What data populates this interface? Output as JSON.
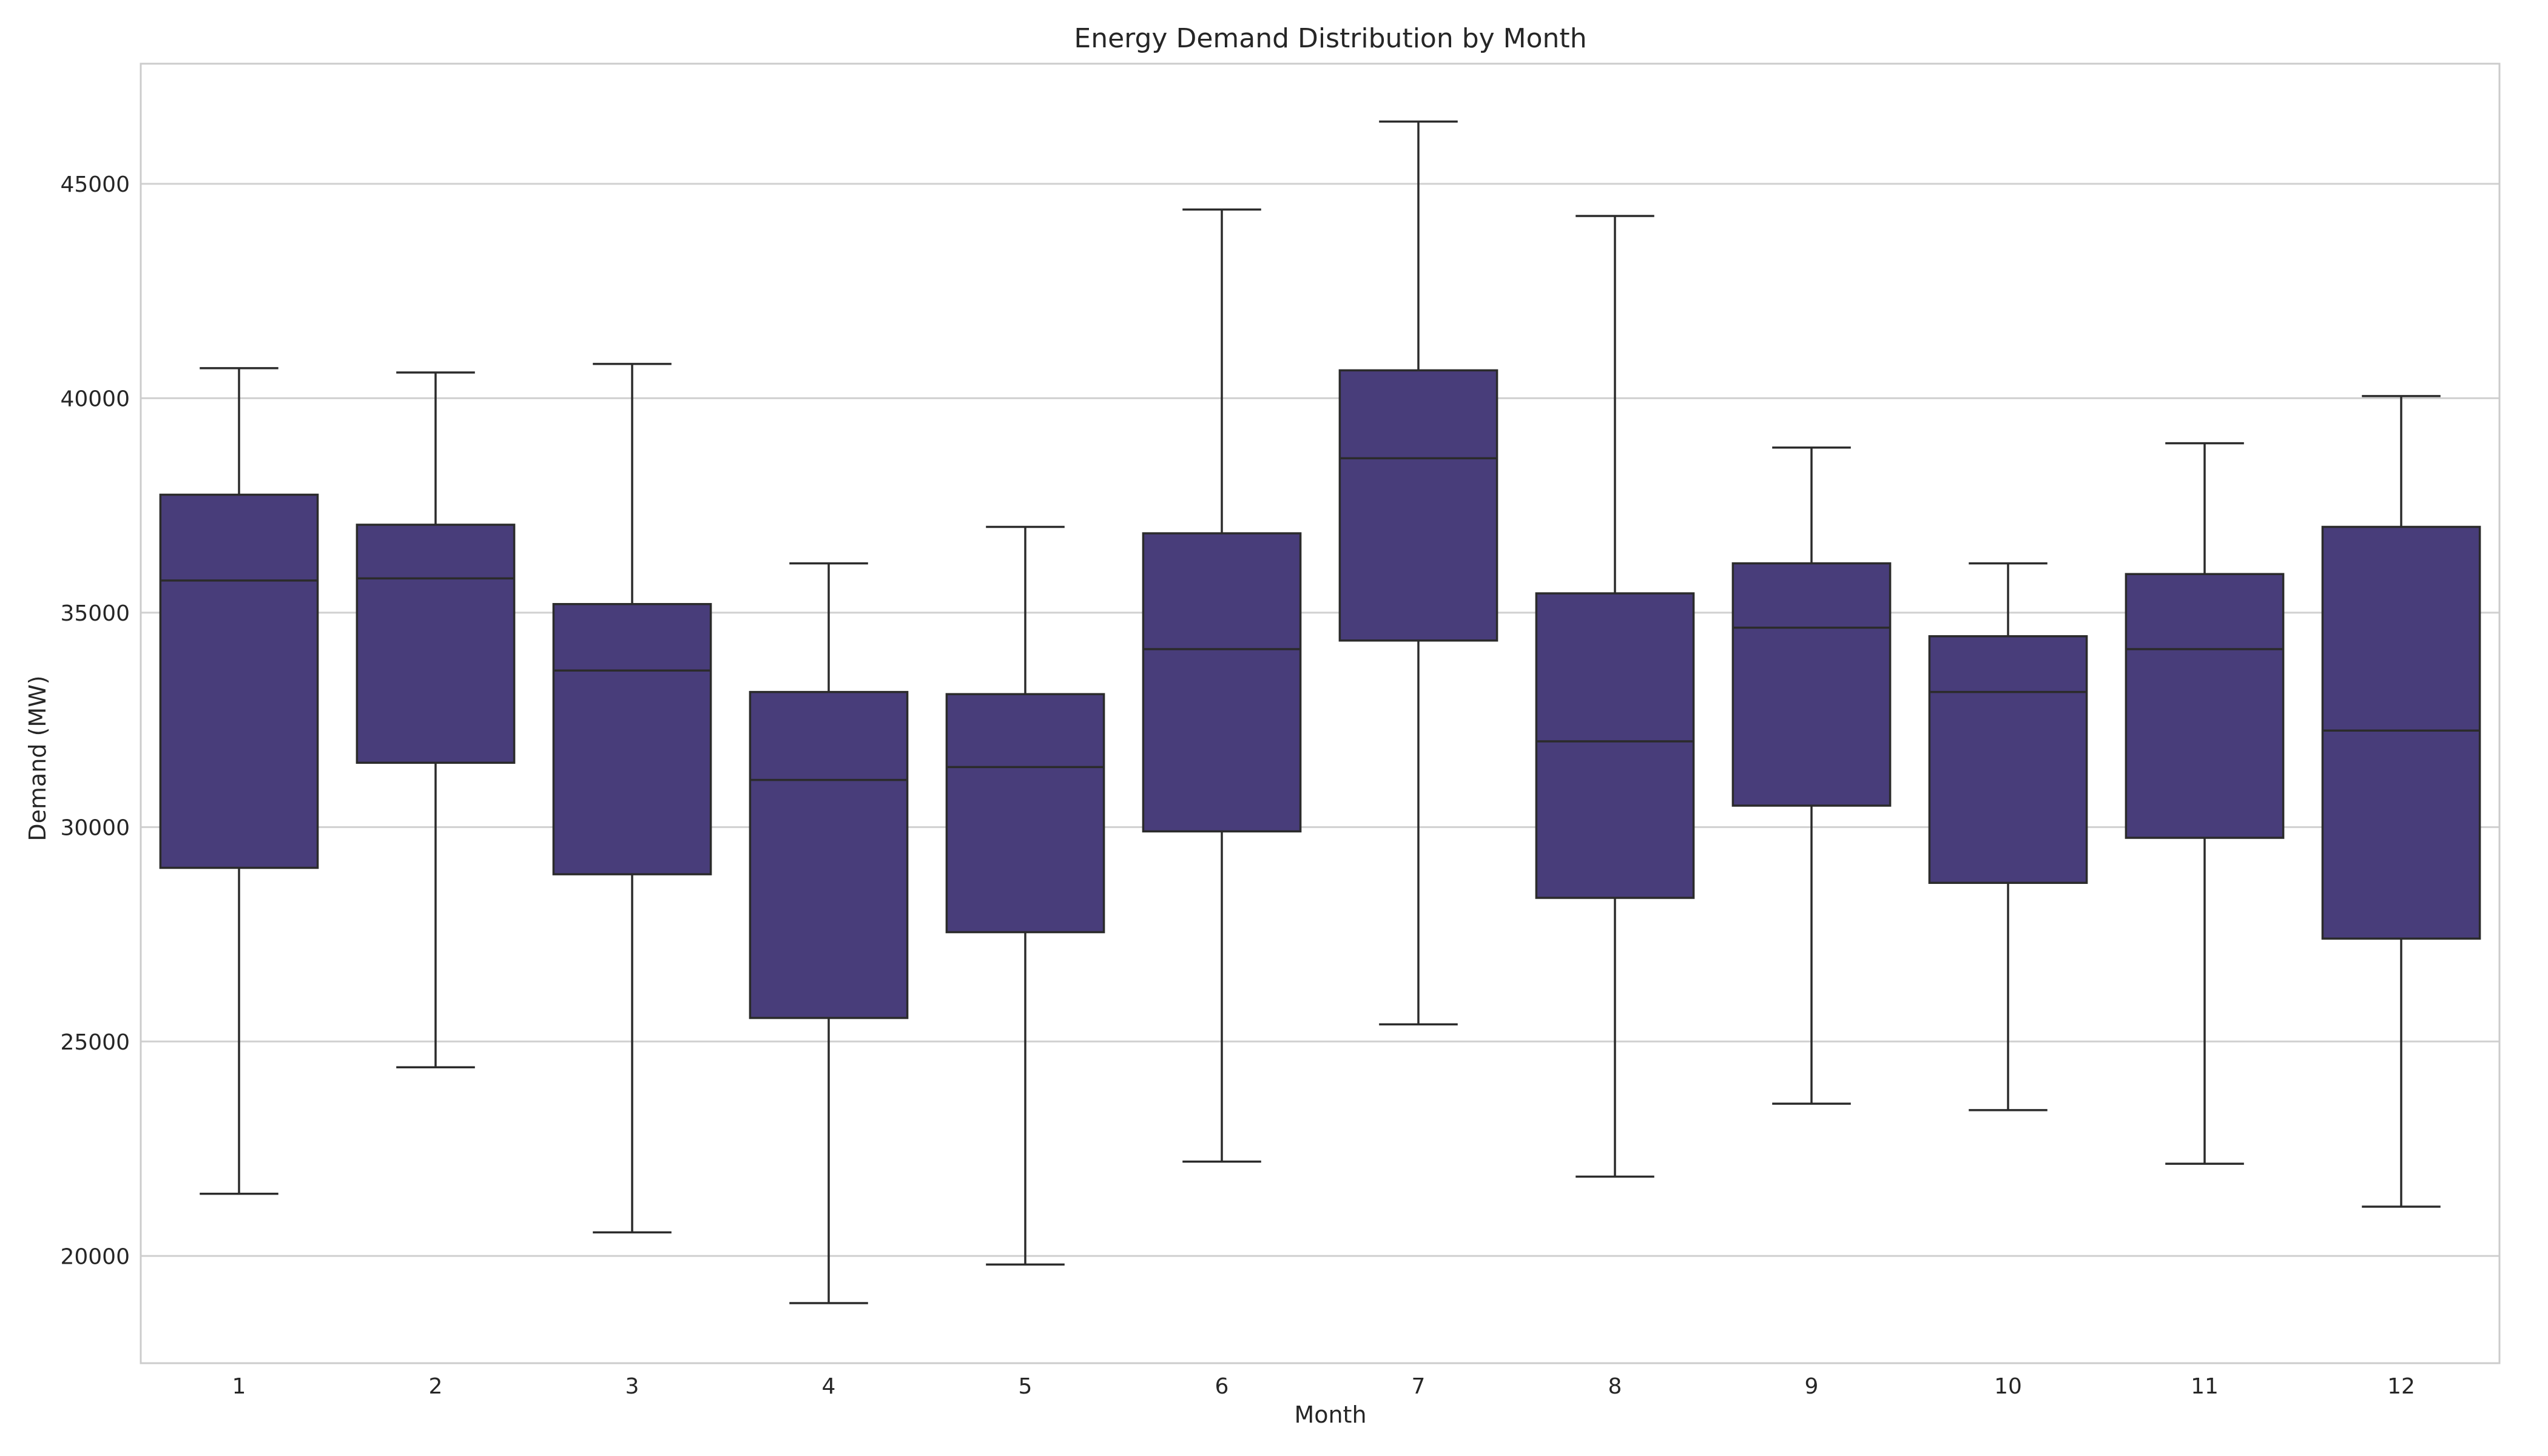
{
  "chart_data": {
    "type": "box",
    "title": "Energy Demand Distribution by Month",
    "xlabel": "Month",
    "ylabel": "Demand (MW)",
    "ylim": [
      17500,
      47800
    ],
    "yticks": [
      20000,
      25000,
      30000,
      35000,
      40000,
      45000
    ],
    "grid": true,
    "box_color": "#483D7A",
    "edge_color": "#2B2B2B",
    "grid_color": "#D0D0D0",
    "categories": [
      "1",
      "2",
      "3",
      "4",
      "5",
      "6",
      "7",
      "8",
      "9",
      "10",
      "11",
      "12"
    ],
    "boxes": [
      {
        "min": 21450,
        "q1": 29050,
        "median": 35750,
        "q3": 37750,
        "max": 40700
      },
      {
        "min": 24400,
        "q1": 31500,
        "median": 35800,
        "q3": 37050,
        "max": 40600
      },
      {
        "min": 20550,
        "q1": 28900,
        "median": 33650,
        "q3": 35200,
        "max": 40800
      },
      {
        "min": 18900,
        "q1": 25550,
        "median": 31100,
        "q3": 33150,
        "max": 36150
      },
      {
        "min": 19800,
        "q1": 27550,
        "median": 31400,
        "q3": 33100,
        "max": 37000
      },
      {
        "min": 22200,
        "q1": 29900,
        "median": 34150,
        "q3": 36850,
        "max": 44400
      },
      {
        "min": 25400,
        "q1": 34350,
        "median": 38600,
        "q3": 40650,
        "max": 46450
      },
      {
        "min": 21850,
        "q1": 28350,
        "median": 32000,
        "q3": 35450,
        "max": 44250
      },
      {
        "min": 23550,
        "q1": 30500,
        "median": 34650,
        "q3": 36150,
        "max": 38850
      },
      {
        "min": 23400,
        "q1": 28700,
        "median": 33150,
        "q3": 34450,
        "max": 36150
      },
      {
        "min": 22150,
        "q1": 29750,
        "median": 34150,
        "q3": 35900,
        "max": 38950
      },
      {
        "min": 21150,
        "q1": 27400,
        "median": 32250,
        "q3": 37000,
        "max": 40050
      }
    ]
  }
}
